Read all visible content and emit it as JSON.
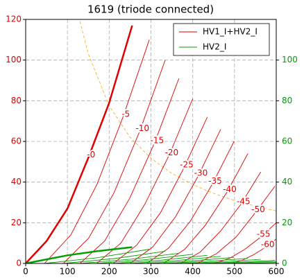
{
  "chart_data": {
    "type": "line",
    "title": "1619 (triode connected)",
    "xlim": [
      0,
      600
    ],
    "xticks": [
      0,
      100,
      200,
      300,
      400,
      500,
      600
    ],
    "ylim": [
      0,
      120
    ],
    "yticks": [
      0,
      20,
      40,
      60,
      80,
      100,
      120
    ],
    "ytick_color": "#dd0000",
    "y2lim": [
      0,
      120
    ],
    "y2ticks": [
      0,
      20,
      40,
      60,
      80,
      100
    ],
    "y2tick_color": "#00a000",
    "grid": true,
    "legend": "upper right",
    "series": [
      {
        "name": "HV1_I+HV2_I",
        "color": "#e00000",
        "curves": [
          {
            "label": "-0",
            "linewidth": 2.5,
            "x": [
              0,
              50,
              100,
              150,
              200,
              255
            ],
            "values": [
              0,
              11,
              27,
              52,
              79,
              117
            ]
          },
          {
            "label": "-5",
            "x": [
              45,
              108,
              171,
              233,
              296
            ],
            "values": [
              0,
              14,
              39,
              72,
              110
            ]
          },
          {
            "label": "-10",
            "x": [
              90,
              151,
              212,
              273,
              334
            ],
            "values": [
              0,
              12.5,
              35,
              65,
              100
            ]
          },
          {
            "label": "-15",
            "x": [
              130,
              189,
              249,
              308,
              367
            ],
            "values": [
              0,
              11,
              32,
              59,
              91
            ]
          },
          {
            "label": "-20",
            "x": [
              170,
              228,
              285,
              343,
              400
            ],
            "values": [
              0,
              10,
              29,
              53,
              81
            ]
          },
          {
            "label": "-25",
            "x": [
              210,
              266,
              323,
              379,
              435
            ],
            "values": [
              0,
              9,
              25,
              47,
              72
            ]
          },
          {
            "label": "-30",
            "x": [
              250,
              304,
              359,
              413,
              467
            ],
            "values": [
              0,
              8,
              23,
              43,
              66
            ]
          },
          {
            "label": "-35",
            "x": [
              290,
              342,
              395,
              447,
              499
            ],
            "values": [
              0,
              7.5,
              21,
              39,
              60
            ]
          },
          {
            "label": "-40",
            "x": [
              330,
              381,
              431,
              482,
              532
            ],
            "values": [
              0,
              7,
              19,
              35,
              54
            ]
          },
          {
            "label": "-45",
            "x": [
              370,
              418,
              467,
              515,
              563
            ],
            "values": [
              0,
              5.6,
              16,
              29,
              45
            ]
          },
          {
            "label": "-50",
            "x": [
              410,
              457,
              504,
              550,
              597
            ],
            "values": [
              0,
              4.8,
              13,
              25,
              38
            ]
          },
          {
            "label": "-55",
            "x": [
              450,
              488,
              525,
              563,
              600
            ],
            "values": [
              0,
              2.5,
              7,
              13,
              20
            ]
          },
          {
            "label": "-60",
            "x": [
              490,
              518,
              545,
              573,
              600
            ],
            "values": [
              0,
              1.5,
              4.2,
              7.8,
              12
            ]
          }
        ]
      },
      {
        "name": "HV2_I",
        "color": "#00a000",
        "curves": [
          {
            "linewidth": 2.5,
            "x": [
              0,
              50,
              100,
              170,
              255
            ],
            "values": [
              0,
              2,
              4,
              6,
              8
            ]
          },
          {
            "x": [
              45,
              171,
              296
            ],
            "values": [
              0,
              2.8,
              7
            ]
          },
          {
            "x": [
              90,
              212,
              334
            ],
            "values": [
              0,
              2.4,
              6
            ]
          },
          {
            "x": [
              130,
              249,
              367
            ],
            "values": [
              0,
              2,
              5
            ]
          },
          {
            "x": [
              170,
              285,
              400
            ],
            "values": [
              0,
              1.8,
              4.5
            ]
          },
          {
            "x": [
              210,
              323,
              435
            ],
            "values": [
              0,
              1.6,
              4
            ]
          },
          {
            "x": [
              250,
              359,
              467
            ],
            "values": [
              0,
              1.4,
              3.5
            ]
          },
          {
            "x": [
              290,
              395,
              499
            ],
            "values": [
              0,
              1.2,
              3
            ]
          },
          {
            "x": [
              330,
              431,
              532
            ],
            "values": [
              0,
              1,
              2.5
            ]
          },
          {
            "x": [
              370,
              467,
              563
            ],
            "values": [
              0,
              0.8,
              2
            ]
          },
          {
            "x": [
              410,
              504,
              597
            ],
            "values": [
              0,
              0.6,
              1.5
            ]
          },
          {
            "x": [
              450,
              525,
              600
            ],
            "values": [
              0,
              0.4,
              1
            ]
          },
          {
            "x": [
              490,
              545,
              600
            ],
            "values": [
              0,
              0.2,
              0.5
            ]
          }
        ]
      }
    ],
    "dashed_lines": [
      {
        "color": "#ffa500",
        "x": [
          130,
          150,
          200,
          250,
          300,
          350,
          400,
          450,
          500,
          550,
          600
        ],
        "values": [
          119,
          103,
          77.5,
          62,
          51.7,
          44.3,
          38.8,
          34.4,
          31,
          28.2,
          25.8
        ]
      }
    ]
  }
}
